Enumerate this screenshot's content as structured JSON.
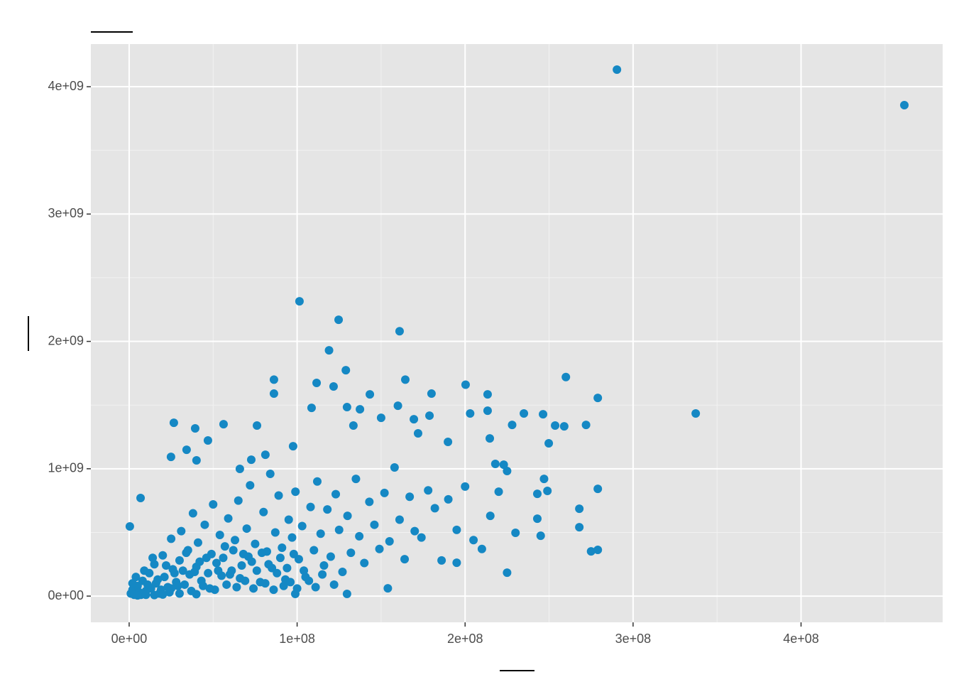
{
  "chart_data": {
    "type": "scatter",
    "color": "#1588c4",
    "grid": true,
    "xlim": [
      -22800000.0,
      484300000.0
    ],
    "ylim": [
      -206000000.0,
      4335000000.0
    ],
    "xticks": [
      {
        "value": 0,
        "label": "0e+00"
      },
      {
        "value": 100000000.0,
        "label": "1e+08"
      },
      {
        "value": 200000000.0,
        "label": "2e+08"
      },
      {
        "value": 300000000.0,
        "label": "3e+08"
      },
      {
        "value": 400000000.0,
        "label": "4e+08"
      }
    ],
    "yticks": [
      {
        "value": 0,
        "label": "0e+00"
      },
      {
        "value": 1000000000.0,
        "label": "1e+09"
      },
      {
        "value": 2000000000.0,
        "label": "2e+09"
      },
      {
        "value": 3000000000.0,
        "label": "3e+09"
      },
      {
        "value": 4000000000.0,
        "label": "4e+09"
      }
    ],
    "x_minor_ticks": [
      50000000.0,
      150000000.0,
      250000000.0,
      350000000.0,
      450000000.0
    ],
    "y_minor_ticks": [
      500000000.0,
      1500000000.0,
      2500000000.0,
      3500000000.0
    ],
    "x": [
      290400000.0,
      461500000.0,
      337300000.0,
      101400000.0,
      124700000.0,
      161000000.0,
      119000000.0,
      129000000.0,
      86200000.0,
      86200000.0,
      111600000.0,
      121700000.0,
      164400000.0,
      200300000.0,
      260000000.0,
      279000000.0,
      213400000.0,
      180000000.0,
      143300000.0,
      160000000.0,
      108600000.0,
      129700000.0,
      137400000.0,
      203000000.0,
      213400000.0,
      235000000.0,
      178800000.0,
      150000000.0,
      169500000.0,
      133500000.0,
      228000000.0,
      253600000.0,
      259000000.0,
      272000000.0,
      26600000.0,
      39300000.0,
      56200000.0,
      76100000.0,
      46900000.0,
      34200000.0,
      24900000.0,
      40100000.0,
      97600000.0,
      81100000.0,
      72700000.0,
      65900000.0,
      214700000.0,
      249800000.0,
      189800000.0,
      246400000.0,
      172000000.0,
      279000000.0,
      268000000.0,
      268000000.0,
      275000000.0,
      279000000.0,
      225000000.0,
      245000000.0,
      243000000.0,
      247000000.0,
      249000000.0,
      243000000.0,
      230000000.0,
      225000000.0,
      223000000.0,
      218000000.0,
      195000000.0,
      154000000.0,
      129700000.0,
      98900000.0,
      400000.0,
      6800000.0,
      1000000.0,
      2000000.0,
      3000000.0,
      5000000.0,
      6000000.0,
      8000000.0,
      10000000.0,
      12000000.0,
      13000000.0,
      15000000.0,
      16000000.0,
      18000000.0,
      20000000.0,
      21000000.0,
      23000000.0,
      25000000.0,
      26000000.0,
      28000000.0,
      30000000.0,
      31000000.0,
      33000000.0,
      35000000.0,
      36000000.0,
      38000000.0,
      40000000.0,
      41000000.0,
      43000000.0,
      45000000.0,
      46000000.0,
      48000000.0,
      50000000.0,
      52000000.0,
      54000000.0,
      55000000.0,
      57000000.0,
      59000000.0,
      61000000.0,
      63000000.0,
      65000000.0,
      66000000.0,
      68000000.0,
      70000000.0,
      72000000.0,
      73000000.0,
      75000000.0,
      78000000.0,
      80000000.0,
      82000000.0,
      84000000.0,
      85000000.0,
      87000000.0,
      89000000.0,
      91000000.0,
      93000000.0,
      95000000.0,
      97000000.0,
      99000000.0,
      101000000.0,
      103000000.0,
      105000000.0,
      108000000.0,
      110000000.0,
      112000000.0,
      114000000.0,
      116000000.0,
      118000000.0,
      120000000.0,
      123000000.0,
      125000000.0,
      127000000.0,
      130000000.0,
      132000000.0,
      135000000.0,
      137000000.0,
      140000000.0,
      143000000.0,
      146000000.0,
      149000000.0,
      152000000.0,
      155000000.0,
      158000000.0,
      161000000.0,
      164000000.0,
      167000000.0,
      170000000.0,
      174000000.0,
      178000000.0,
      182000000.0,
      186000000.0,
      190000000.0,
      195000000.0,
      200000000.0,
      205000000.0,
      210000000.0,
      215000000.0,
      220000000.0,
      4000000.0,
      7000000.0,
      9000000.0,
      11000000.0,
      14000000.0,
      17000000.0,
      19000000.0,
      22000000.0,
      24000000.0,
      27000000.0,
      29000000.0,
      32000000.0,
      34000000.0,
      37000000.0,
      39000000.0,
      42000000.0,
      44000000.0,
      47000000.0,
      49000000.0,
      51000000.0,
      53000000.0,
      56000000.0,
      58000000.0,
      60000000.0,
      62000000.0,
      64000000.0,
      67000000.0,
      69000000.0,
      71000000.0,
      74000000.0,
      76000000.0,
      79000000.0,
      81000000.0,
      83000000.0,
      86000000.0,
      88000000.0,
      90000000.0,
      92000000.0,
      94000000.0,
      96000000.0,
      98000000.0,
      100000000.0,
      104000000.0,
      107000000.0,
      111000000.0,
      115000000.0,
      122000000.0,
      5000000.0,
      10000000.0,
      15000000.0,
      20000000.0,
      30000000.0,
      40000000.0,
      25000000.0,
      2000000.0
    ],
    "values": [
      4134000000.0,
      3855000000.0,
      1434000000.0,
      2315000000.0,
      2170000000.0,
      2080000000.0,
      1930000000.0,
      1774000000.0,
      1700000000.0,
      1590000000.0,
      1674000000.0,
      1646000000.0,
      1700000000.0,
      1660000000.0,
      1720000000.0,
      1556000000.0,
      1584000000.0,
      1590000000.0,
      1584000000.0,
      1495000000.0,
      1478000000.0,
      1484000000.0,
      1467000000.0,
      1434000000.0,
      1456000000.0,
      1434000000.0,
      1417000000.0,
      1400000000.0,
      1389000000.0,
      1339000000.0,
      1344000000.0,
      1339000000.0,
      1333000000.0,
      1344000000.0,
      1361000000.0,
      1317000000.0,
      1350000000.0,
      1339000000.0,
      1222000000.0,
      1149000000.0,
      1093000000.0,
      1066000000.0,
      1177000000.0,
      1110000000.0,
      1071000000.0,
      999000000.0,
      1238000000.0,
      1200000000.0,
      1211000000.0,
      1428000000.0,
      1278000000.0,
      842000000.0,
      686000000.0,
      541000000.0,
      351000000.0,
      363000000.0,
      184000000.0,
      474000000.0,
      608000000.0,
      920000000.0,
      826000000.0,
      803000000.0,
      497000000.0,
      982000000.0,
      1032000000.0,
      1038000000.0,
      262000000.0,
      61000000.0,
      17000000.0,
      17000000.0,
      547000000.0,
      770000000.0,
      20000000.0,
      50000000.0,
      10000000.0,
      80000000.0,
      30000000.0,
      120000000.0,
      40000000.0,
      180000000.0,
      60000000.0,
      250000000.0,
      100000000.0,
      20000000.0,
      320000000.0,
      150000000.0,
      70000000.0,
      450000000.0,
      210000000.0,
      110000000.0,
      280000000.0,
      510000000.0,
      90000000.0,
      360000000.0,
      170000000.0,
      650000000.0,
      230000000.0,
      420000000.0,
      120000000.0,
      560000000.0,
      300000000.0,
      60000000.0,
      720000000.0,
      260000000.0,
      480000000.0,
      160000000.0,
      390000000.0,
      610000000.0,
      200000000.0,
      440000000.0,
      750000000.0,
      140000000.0,
      330000000.0,
      530000000.0,
      870000000.0,
      270000000.0,
      410000000.0,
      110000000.0,
      660000000.0,
      350000000.0,
      960000000.0,
      220000000.0,
      500000000.0,
      790000000.0,
      380000000.0,
      130000000.0,
      600000000.0,
      460000000.0,
      820000000.0,
      290000000.0,
      550000000.0,
      150000000.0,
      700000000.0,
      360000000.0,
      900000000.0,
      490000000.0,
      240000000.0,
      680000000.0,
      310000000.0,
      800000000.0,
      520000000.0,
      190000000.0,
      630000000.0,
      340000000.0,
      920000000.0,
      470000000.0,
      260000000.0,
      740000000.0,
      560000000.0,
      370000000.0,
      810000000.0,
      430000000.0,
      1010000000.0,
      600000000.0,
      290000000.0,
      780000000.0,
      510000000.0,
      460000000.0,
      830000000.0,
      690000000.0,
      280000000.0,
      760000000.0,
      520000000.0,
      860000000.0,
      440000000.0,
      370000000.0,
      630000000.0,
      820000000.0,
      150000000.0,
      10000000.0,
      200000000.0,
      90000000.0,
      300000000.0,
      130000000.0,
      50000000.0,
      240000000.0,
      30000000.0,
      180000000.0,
      80000000.0,
      200000000.0,
      340000000.0,
      40000000.0,
      190000000.0,
      270000000.0,
      80000000.0,
      180000000.0,
      330000000.0,
      50000000.0,
      200000000.0,
      300000000.0,
      90000000.0,
      170000000.0,
      360000000.0,
      70000000.0,
      240000000.0,
      120000000.0,
      310000000.0,
      60000000.0,
      200000000.0,
      340000000.0,
      100000000.0,
      250000000.0,
      50000000.0,
      180000000.0,
      300000000.0,
      80000000.0,
      220000000.0,
      110000000.0,
      330000000.0,
      60000000.0,
      200000000.0,
      120000000.0,
      70000000.0,
      170000000.0,
      90000000.0,
      5000000.0,
      10000000.0,
      8000000.0,
      12000000.0,
      20000000.0,
      15000000.0,
      60000000.0,
      100000000.0
    ]
  }
}
